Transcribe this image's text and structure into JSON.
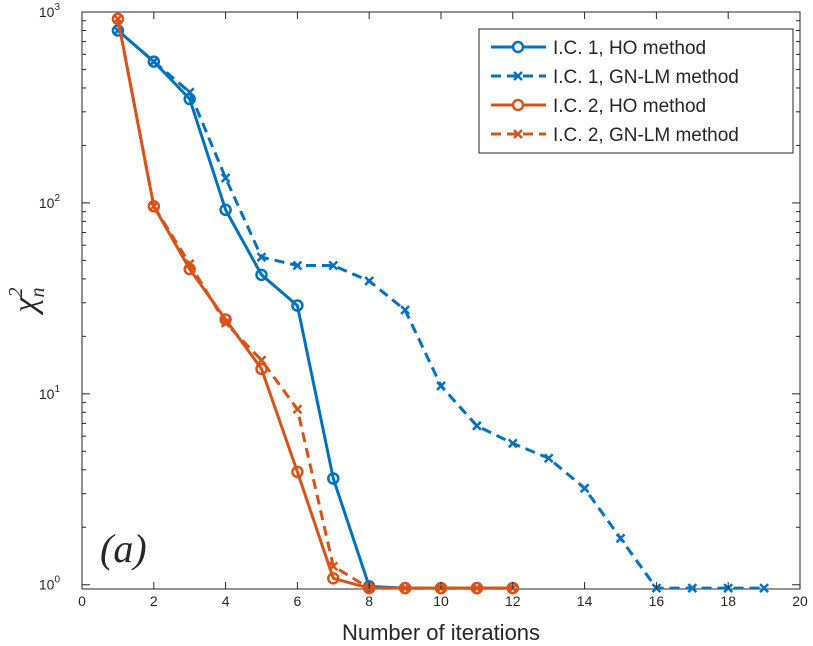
{
  "chart_data": {
    "type": "line",
    "title": "",
    "xlabel": "Number of iterations",
    "ylabel": "χ²ₙ",
    "ylabel_parts": {
      "symbol": "χ",
      "superscript": "2",
      "subscript": "n"
    },
    "panel_label": "(a)",
    "xlim": [
      0,
      20
    ],
    "ylim": [
      0.95,
      1000
    ],
    "yscale": "log",
    "x_ticks": [
      0,
      2,
      4,
      6,
      8,
      10,
      12,
      14,
      16,
      18,
      20
    ],
    "y_ticks": [
      {
        "value": 1,
        "base": "10",
        "exp": "0"
      },
      {
        "value": 10,
        "base": "10",
        "exp": "1"
      },
      {
        "value": 100,
        "base": "10",
        "exp": "2"
      },
      {
        "value": 1000,
        "base": "10",
        "exp": "3"
      }
    ],
    "grid": false,
    "legend_position": "top-right",
    "series": [
      {
        "name": "I.C. 1, HO method",
        "color": "#0072BD",
        "style": "solid",
        "marker": "circle",
        "x": [
          1,
          2,
          3,
          4,
          5,
          6,
          7,
          8,
          9,
          10,
          11,
          12
        ],
        "y": [
          800,
          550,
          350,
          92,
          42,
          29,
          3.6,
          0.98,
          0.96,
          0.96,
          0.96,
          0.96
        ]
      },
      {
        "name": "I.C. 1, GN-LM method",
        "color": "#0072BD",
        "style": "dashed",
        "marker": "x",
        "x": [
          1,
          2,
          3,
          4,
          5,
          6,
          7,
          8,
          9,
          10,
          11,
          12,
          13,
          14,
          15,
          16,
          17,
          18,
          19
        ],
        "y": [
          800,
          550,
          380,
          135,
          52,
          47,
          47,
          39,
          27.5,
          11,
          6.8,
          5.5,
          4.6,
          3.2,
          1.75,
          0.96,
          0.96,
          0.96,
          0.96
        ]
      },
      {
        "name": "I.C. 2, HO method",
        "color": "#D95319",
        "style": "solid",
        "marker": "circle",
        "x": [
          1,
          2,
          3,
          4,
          5,
          6,
          7,
          8,
          9,
          10,
          11,
          12
        ],
        "y": [
          920,
          96,
          45,
          24.5,
          13.5,
          3.9,
          1.08,
          0.96,
          0.96,
          0.96,
          0.96,
          0.96
        ]
      },
      {
        "name": "I.C. 2, GN-LM method",
        "color": "#D95319",
        "style": "dashed",
        "marker": "x",
        "x": [
          1,
          2,
          3,
          4,
          5,
          6,
          7,
          8,
          9,
          10,
          11,
          12
        ],
        "y": [
          920,
          96,
          48,
          23.5,
          15,
          8.3,
          1.25,
          0.96,
          0.96,
          0.96,
          0.96,
          0.96
        ]
      }
    ]
  }
}
